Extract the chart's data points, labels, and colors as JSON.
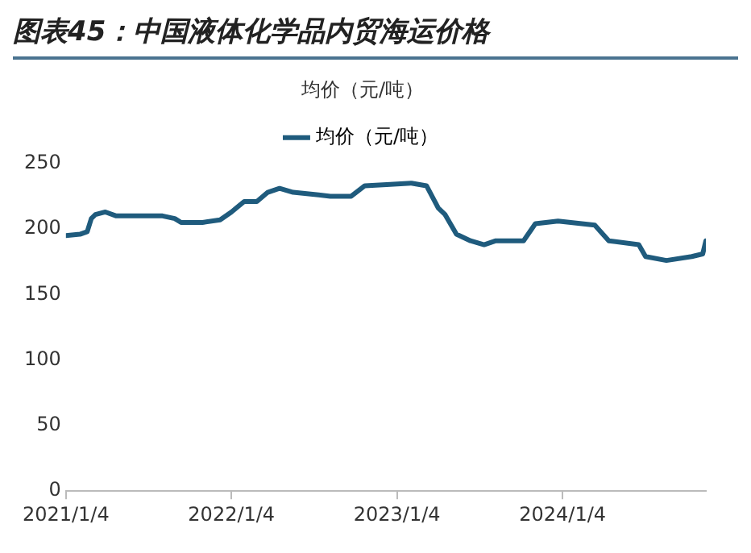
{
  "chart_data": {
    "type": "line",
    "title": "图表45：中国液体化学品内贸海运价格",
    "subtitle": "均价（元/吨）",
    "x": [
      "2021-01-04",
      "2021-02-04",
      "2021-02-20",
      "2021-03-01",
      "2021-03-10",
      "2021-04-01",
      "2021-04-25",
      "2021-08-05",
      "2021-09-01",
      "2021-09-15",
      "2021-11-01",
      "2021-12-10",
      "2022-01-04",
      "2022-02-01",
      "2022-03-01",
      "2022-03-25",
      "2022-04-20",
      "2022-05-20",
      "2022-07-15",
      "2022-08-10",
      "2022-09-25",
      "2022-10-25",
      "2022-12-20",
      "2023-02-05",
      "2023-03-10",
      "2023-04-05",
      "2023-04-20",
      "2023-05-15",
      "2023-06-15",
      "2023-07-15",
      "2023-08-10",
      "2023-10-10",
      "2023-11-05",
      "2023-12-25",
      "2024-03-15",
      "2024-04-15",
      "2024-06-20",
      "2024-07-05",
      "2024-08-20",
      "2024-10-15",
      "2024-11-08",
      "2024-11-15"
    ],
    "series": [
      {
        "name": "均价（元/吨）",
        "color": "#1f5b7d",
        "values": [
          195,
          196,
          198,
          208,
          211,
          213,
          210,
          210,
          208,
          205,
          205,
          207,
          213,
          221,
          221,
          228,
          231,
          228,
          226,
          225,
          225,
          233,
          234,
          235,
          233,
          216,
          211,
          196,
          191,
          188,
          191,
          191,
          204,
          206,
          203,
          191,
          188,
          179,
          176,
          179,
          181,
          191
        ]
      }
    ],
    "xlim": [
      "2021-01-04",
      "2024-11-15"
    ],
    "xticks": [
      {
        "value": "2021-01-04",
        "label": "2021/1/4"
      },
      {
        "value": "2022-01-04",
        "label": "2022/1/4"
      },
      {
        "value": "2023-01-04",
        "label": "2023/1/4"
      },
      {
        "value": "2024-01-04",
        "label": "2024/1/4"
      }
    ],
    "ylim": [
      0,
      250
    ],
    "yticks": [
      0,
      50,
      100,
      150,
      200,
      250
    ],
    "grid": false,
    "legend": "top",
    "marker": "none",
    "line_style": "solid"
  }
}
